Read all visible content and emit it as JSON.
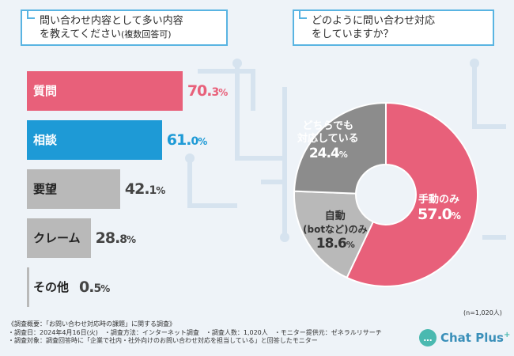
{
  "left_question": {
    "line1": "問い合わせ内容として多い内容",
    "line2": "を教えてください",
    "sub": "(複数回答可)"
  },
  "right_question": {
    "line1": "どのように問い合わせ対応",
    "line2": "をしていますか？"
  },
  "colors": {
    "pink": "#e8607a",
    "blue": "#1e9ad6",
    "gray": "#b9b9b9",
    "darkgray": "#8c8c8c",
    "white": "#ffffff"
  },
  "chart_data": [
    {
      "type": "bar",
      "orientation": "horizontal",
      "categories": [
        "質問",
        "相談",
        "要望",
        "クレーム",
        "その他"
      ],
      "values": [
        70.3,
        61.0,
        42.1,
        28.8,
        0.5
      ],
      "value_labels": [
        "70.3",
        "61.0",
        "42.1",
        "28.8",
        "0.5"
      ],
      "unit": "%",
      "title": "問い合わせ内容として多い内容を教えてください(複数回答可)"
    },
    {
      "type": "pie",
      "categories": [
        "手動のみ",
        "自動(botなど)のみ",
        "どちらでも対応している"
      ],
      "values": [
        57.0,
        18.6,
        24.4
      ],
      "value_labels": [
        "57.0",
        "18.6",
        "24.4"
      ],
      "unit": "%",
      "title": "どのように問い合わせ対応をしていますか？",
      "note": "(n=1,020人)"
    }
  ],
  "pie_labels": {
    "manual": {
      "line1": "手動のみ",
      "value": "57.0"
    },
    "auto": {
      "line1": "自動",
      "line2": "(botなど)のみ",
      "value": "18.6"
    },
    "both": {
      "line1": "どちらでも",
      "line2": "対応している",
      "value": "24.4"
    }
  },
  "pct_sign": "%",
  "footer": {
    "line1": "《調査概要：「お問い合わせ対応時の課題」に関する調査》",
    "line2": "・調査日：2024年4月16日(火)　・調査方法：インターネット調査　・調査人数：1,020人　・モニター提供元：ゼネラルリサーチ",
    "line3": "・調査対象：調査回答時に「企業で社内・社外向けのお問い合わせ対応を担当している」と回答したモニター"
  },
  "n_note": "(n=1,020人)",
  "logo": {
    "text": "Chat Plus",
    "plus": "+"
  }
}
